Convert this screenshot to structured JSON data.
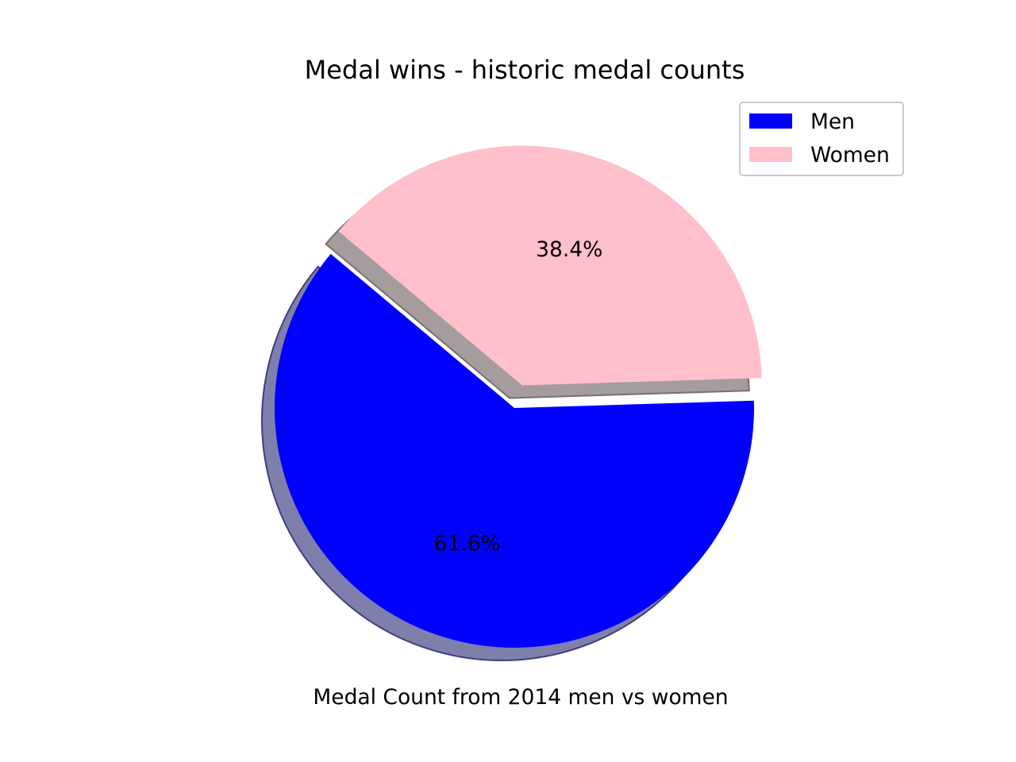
{
  "chart_data": {
    "type": "pie",
    "title": "Medal wins - historic medal counts",
    "xlabel": "Medal Count from 2014 men vs women",
    "categories": [
      "Men",
      "Women"
    ],
    "values": [
      61.6,
      38.4
    ],
    "labels": [
      "61.6%",
      "38.4%"
    ],
    "colors": [
      "#0000ff",
      "#ffc0cb"
    ],
    "explode": [
      0,
      0.1
    ],
    "shadow": true,
    "start_angle_deg": 140,
    "legend": {
      "placement": "top-right",
      "entries": [
        "Men",
        "Women"
      ]
    }
  }
}
